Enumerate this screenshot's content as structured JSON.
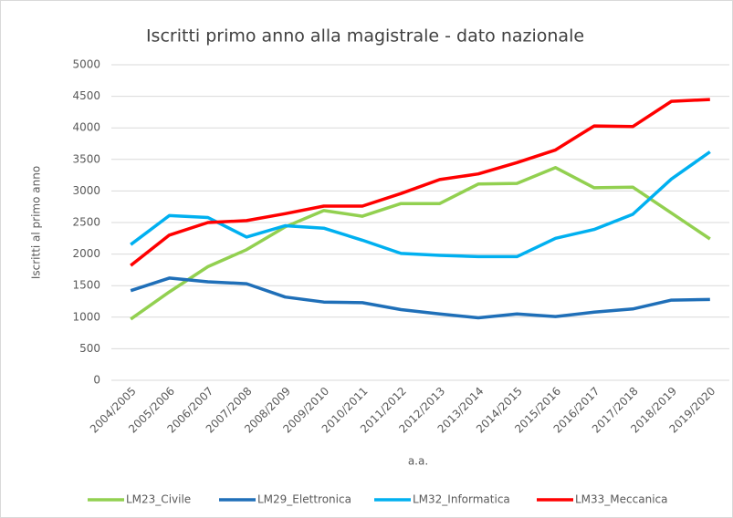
{
  "chart_data": {
    "type": "line",
    "title": "Iscritti primo anno alla magistrale - dato nazionale",
    "x_label": "a.a.",
    "y_label": "Iscritti al primo anno",
    "categories": [
      "2004/2005",
      "2005/2006",
      "2006/2007",
      "2007/2008",
      "2008/2009",
      "2009/2010",
      "2010/2011",
      "2011/2012",
      "2012/2013",
      "2013/2014",
      "2014/2015",
      "2015/2016",
      "2016/2017",
      "2017/2018",
      "2018/2019",
      "2019/2020"
    ],
    "series": [
      {
        "name": "LM23_Civile",
        "color": "#92d050",
        "values": [
          970,
          1400,
          1800,
          2070,
          2430,
          2690,
          2600,
          2800,
          2800,
          3110,
          3120,
          3370,
          3050,
          3060,
          2650,
          2240
        ]
      },
      {
        "name": "LM29_Elettronica",
        "color": "#1f6fb8",
        "values": [
          1420,
          1620,
          1560,
          1530,
          1320,
          1240,
          1230,
          1120,
          1050,
          990,
          1050,
          1010,
          1080,
          1130,
          1270,
          1280
        ]
      },
      {
        "name": "LM32_Informatica",
        "color": "#00b0f0",
        "values": [
          2150,
          2610,
          2580,
          2270,
          2450,
          2410,
          2220,
          2010,
          1980,
          1960,
          1960,
          2250,
          2390,
          2630,
          3190,
          3620
        ]
      },
      {
        "name": "LM33_Meccanica",
        "color": "#ff0000",
        "values": [
          1820,
          2300,
          2500,
          2530,
          2640,
          2760,
          2760,
          2960,
          3180,
          3270,
          3450,
          3650,
          4030,
          4020,
          4420,
          4450
        ]
      }
    ],
    "ylim": [
      0,
      5000
    ],
    "yticks": [
      0,
      500,
      1000,
      1500,
      2000,
      2500,
      3000,
      3500,
      4000,
      4500,
      5000
    ],
    "grid": true,
    "legend": "bottom"
  }
}
